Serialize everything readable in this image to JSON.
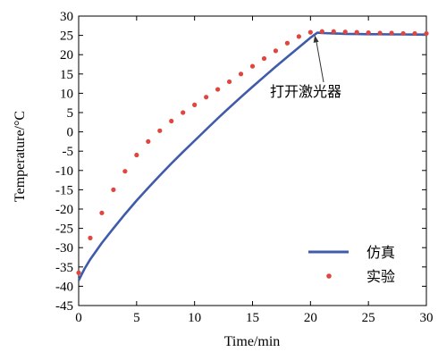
{
  "chart_data": {
    "type": "line",
    "title": "",
    "xlabel": "Time/min",
    "ylabel": "Temperature/°C",
    "xlim": [
      0,
      30
    ],
    "ylim": [
      -45,
      30
    ],
    "xticks": [
      0,
      5,
      10,
      15,
      20,
      25,
      30
    ],
    "yticks": [
      -45,
      -40,
      -35,
      -30,
      -25,
      -20,
      -15,
      -10,
      -5,
      0,
      5,
      10,
      15,
      20,
      25,
      30
    ],
    "grid": false,
    "legend_position": "bottom-right",
    "colors": {
      "simulation": "#3f5ba9",
      "experiment": "#e0453f",
      "axis": "#000000"
    },
    "series": [
      {
        "name": "仿真",
        "style": "line",
        "x": [
          0,
          0.5,
          1,
          2,
          3,
          4,
          5,
          6,
          7,
          8,
          9,
          10,
          11,
          12,
          13,
          14,
          15,
          16,
          17,
          18,
          19,
          20,
          20.6,
          21,
          22,
          23,
          24,
          25,
          26,
          27,
          28,
          29,
          30
        ],
        "y": [
          -38.5,
          -35.5,
          -33,
          -28.8,
          -25,
          -21.3,
          -17.8,
          -14.5,
          -11.3,
          -8.2,
          -5.2,
          -2.3,
          0.6,
          3.5,
          6.3,
          9.0,
          11.7,
          14.3,
          16.9,
          19.4,
          21.9,
          24.4,
          25.7,
          25.6,
          25.5,
          25.4,
          25.35,
          25.3,
          25.3,
          25.25,
          25.25,
          25.2,
          25.2
        ]
      },
      {
        "name": "实验",
        "style": "dots",
        "x": [
          0,
          1,
          2,
          3,
          4,
          5,
          6,
          7,
          8,
          9,
          10,
          11,
          12,
          13,
          14,
          15,
          16,
          17,
          18,
          19,
          20,
          21,
          22,
          23,
          24,
          25,
          26,
          27,
          28,
          29,
          30
        ],
        "y": [
          -36.5,
          -27.5,
          -21,
          -15,
          -10.2,
          -6,
          -2.5,
          0.3,
          2.8,
          5,
          7,
          9,
          11,
          13,
          15,
          17,
          19,
          21,
          23,
          24.7,
          25.8,
          26,
          26,
          25.9,
          25.8,
          25.7,
          25.6,
          25.6,
          25.5,
          25.5,
          25.5
        ]
      }
    ],
    "annotations": [
      {
        "text": "打开激光器",
        "x": 20.3,
        "y": 25.5
      }
    ]
  }
}
